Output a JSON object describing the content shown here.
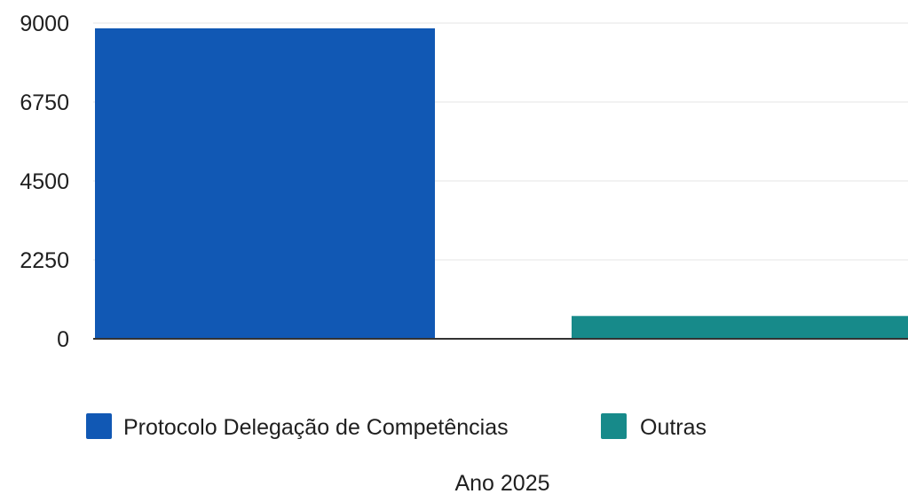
{
  "chart_data": {
    "type": "bar",
    "title": "",
    "xlabel": "Ano 2025",
    "ylabel": "",
    "ylim": [
      0,
      9000
    ],
    "yticks": [
      "0",
      "2250",
      "4500",
      "6750",
      "9000"
    ],
    "grid": true,
    "legend_position": "bottom",
    "series": [
      {
        "name": "Protocolo Delegação de Competências",
        "value": 8850,
        "color": "#1158b4"
      },
      {
        "name": "Outras",
        "value": 650,
        "color": "#178a8a"
      }
    ]
  },
  "colors": {
    "grid": "#eeeeee",
    "axis": "#333333",
    "text": "#1f1f1f"
  }
}
